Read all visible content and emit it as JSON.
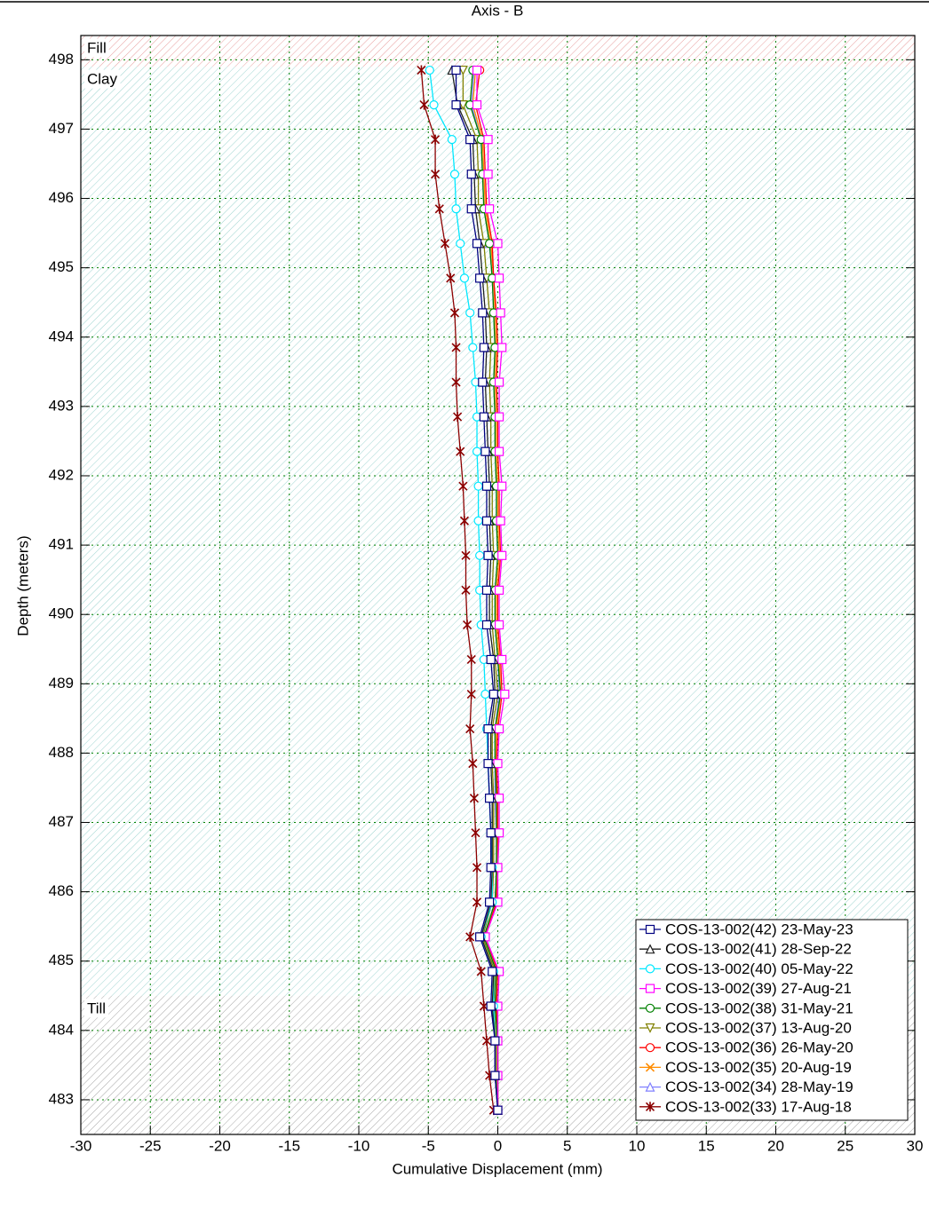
{
  "chart_data": {
    "type": "line",
    "title": "Axis - B",
    "x_label": "Cumulative Displacement (mm)",
    "y_label": "Depth (meters)",
    "xlim": [
      -30,
      30
    ],
    "xticks": [
      -30,
      -25,
      -20,
      -15,
      -10,
      -5,
      0,
      5,
      10,
      15,
      20,
      25,
      30
    ],
    "ylim": [
      482.5,
      498.35
    ],
    "yticks": [
      483,
      484,
      485,
      486,
      487,
      488,
      489,
      490,
      491,
      492,
      493,
      494,
      495,
      496,
      497,
      498
    ],
    "grid": true,
    "legend": "lower right",
    "layers": [
      {
        "name": "Fill",
        "top": 498.35,
        "bottom": 497.9,
        "color": "#e8a0a0"
      },
      {
        "name": "Clay",
        "top": 497.9,
        "bottom": 484.5,
        "color": "#9ed4d0"
      },
      {
        "name": "Till",
        "top": 484.5,
        "bottom": 482.5,
        "color": "#a8a8a8"
      }
    ],
    "depths": [
      497.85,
      497.35,
      496.85,
      496.35,
      495.85,
      495.35,
      494.85,
      494.35,
      493.85,
      493.35,
      492.85,
      492.35,
      491.85,
      491.35,
      490.85,
      490.35,
      489.85,
      489.35,
      488.85,
      488.35,
      487.85,
      487.35,
      486.85,
      486.35,
      485.85,
      485.35,
      484.85,
      484.35,
      483.85,
      483.35,
      482.85
    ],
    "series": [
      {
        "name": "COS-13-002(42) 23-May-23",
        "color": "#000080",
        "marker": "square",
        "values": [
          -3.0,
          -3.0,
          -2.0,
          -1.9,
          -1.9,
          -1.5,
          -1.3,
          -1.1,
          -1.0,
          -1.1,
          -1.0,
          -0.9,
          -0.8,
          -0.8,
          -0.7,
          -0.8,
          -0.8,
          -0.5,
          -0.3,
          -0.7,
          -0.7,
          -0.6,
          -0.5,
          -0.5,
          -0.6,
          -1.3,
          -0.4,
          -0.5,
          -0.2,
          -0.2,
          0
        ]
      },
      {
        "name": "COS-13-002(41) 28-Sep-22",
        "color": "#202020",
        "marker": "triangle",
        "values": [
          -3.3,
          -2.9,
          -1.8,
          -1.7,
          -1.6,
          -1.3,
          -1.1,
          -0.9,
          -0.8,
          -0.9,
          -0.8,
          -0.7,
          -0.6,
          -0.6,
          -0.5,
          -0.6,
          -0.6,
          -0.3,
          -0.2,
          -0.5,
          -0.5,
          -0.4,
          -0.4,
          -0.4,
          -0.5,
          -1.2,
          -0.3,
          -0.4,
          -0.2,
          -0.2,
          0
        ]
      },
      {
        "name": "COS-13-002(40) 05-May-22",
        "color": "#00e8ff",
        "marker": "circle",
        "values": [
          -4.9,
          -4.6,
          -3.3,
          -3.1,
          -3.0,
          -2.7,
          -2.4,
          -2.0,
          -1.8,
          -1.6,
          -1.5,
          -1.5,
          -1.4,
          -1.4,
          -1.3,
          -1.3,
          -1.2,
          -1.0,
          -0.9,
          -0.8,
          -0.7,
          -0.6,
          -0.5,
          -0.4,
          -0.4,
          -1.2,
          -0.3,
          -0.3,
          -0.2,
          -0.2,
          0
        ]
      },
      {
        "name": "COS-13-002(39) 27-Aug-21",
        "color": "#ff00ff",
        "marker": "square",
        "values": [
          -1.5,
          -1.5,
          -0.7,
          -0.7,
          -0.6,
          0,
          0.1,
          0.2,
          0.3,
          0.1,
          0.1,
          0.1,
          0.3,
          0.2,
          0.3,
          0.1,
          0.1,
          0.3,
          0.5,
          0.1,
          0,
          0.1,
          0.1,
          0,
          0,
          -0.9,
          0.1,
          0,
          0,
          0,
          0
        ]
      },
      {
        "name": "COS-13-002(38) 31-May-21",
        "color": "#008000",
        "marker": "circle",
        "values": [
          -1.8,
          -2.0,
          -1.2,
          -1.1,
          -1.0,
          -0.6,
          -0.4,
          -0.3,
          -0.2,
          -0.3,
          -0.2,
          -0.2,
          -0.1,
          -0.1,
          0,
          -0.2,
          -0.2,
          0,
          0.2,
          -0.2,
          -0.2,
          -0.1,
          -0.1,
          -0.1,
          -0.2,
          -1.0,
          -0.1,
          -0.2,
          0,
          0,
          0
        ]
      },
      {
        "name": "COS-13-002(37) 13-Aug-20",
        "color": "#808000",
        "marker": "triangle-down",
        "values": [
          -2.5,
          -2.5,
          -1.5,
          -1.4,
          -1.4,
          -1.0,
          -0.8,
          -0.6,
          -0.5,
          -0.6,
          -0.5,
          -0.5,
          -0.4,
          -0.4,
          -0.3,
          -0.4,
          -0.4,
          -0.2,
          0,
          -0.4,
          -0.4,
          -0.3,
          -0.3,
          -0.3,
          -0.4,
          -1.1,
          -0.2,
          -0.3,
          -0.1,
          -0.1,
          0
        ]
      },
      {
        "name": "COS-13-002(36) 26-May-20",
        "color": "#ff0000",
        "marker": "circle",
        "values": [
          -1.3,
          -1.6,
          -1.0,
          -0.9,
          -0.8,
          -0.4,
          -0.3,
          -0.1,
          0,
          -0.1,
          0,
          0,
          0.1,
          0.1,
          0.2,
          0,
          0,
          0.2,
          0.3,
          0,
          -0.1,
          0,
          0,
          0,
          -0.1,
          -0.9,
          0,
          -0.1,
          0,
          0,
          0
        ]
      },
      {
        "name": "COS-13-002(35) 20-Aug-19",
        "color": "#ff8c00",
        "marker": "x",
        "values": [
          -1.6,
          -1.8,
          -1.1,
          -1.0,
          -0.9,
          -0.5,
          -0.3,
          -0.2,
          -0.1,
          -0.2,
          -0.1,
          -0.1,
          0,
          0,
          0.1,
          -0.1,
          -0.1,
          0.1,
          0.2,
          -0.1,
          -0.1,
          -0.1,
          0,
          0,
          -0.1,
          -0.9,
          0,
          -0.1,
          0,
          0,
          0
        ]
      },
      {
        "name": "COS-13-002(34) 28-May-19",
        "color": "#8080ff",
        "marker": "triangle",
        "values": [
          -1.7,
          -1.9,
          -1.2,
          -1.1,
          -1.0,
          -0.6,
          -0.4,
          -0.3,
          -0.2,
          -0.3,
          -0.2,
          -0.2,
          -0.1,
          -0.1,
          0,
          -0.2,
          -0.2,
          0,
          0.1,
          -0.2,
          -0.2,
          -0.2,
          -0.1,
          -0.1,
          -0.2,
          -1.0,
          -0.1,
          -0.2,
          0,
          0,
          0
        ]
      },
      {
        "name": "COS-13-002(33) 17-Aug-18",
        "color": "#8b0000",
        "marker": "star",
        "values": [
          -5.5,
          -5.3,
          -4.5,
          -4.5,
          -4.2,
          -3.8,
          -3.4,
          -3.1,
          -3.0,
          -3.0,
          -2.9,
          -2.7,
          -2.5,
          -2.4,
          -2.3,
          -2.3,
          -2.2,
          -1.9,
          -1.9,
          -2.0,
          -1.8,
          -1.7,
          -1.6,
          -1.5,
          -1.5,
          -2.0,
          -1.2,
          -1.0,
          -0.8,
          -0.6,
          -0.3
        ]
      }
    ]
  }
}
